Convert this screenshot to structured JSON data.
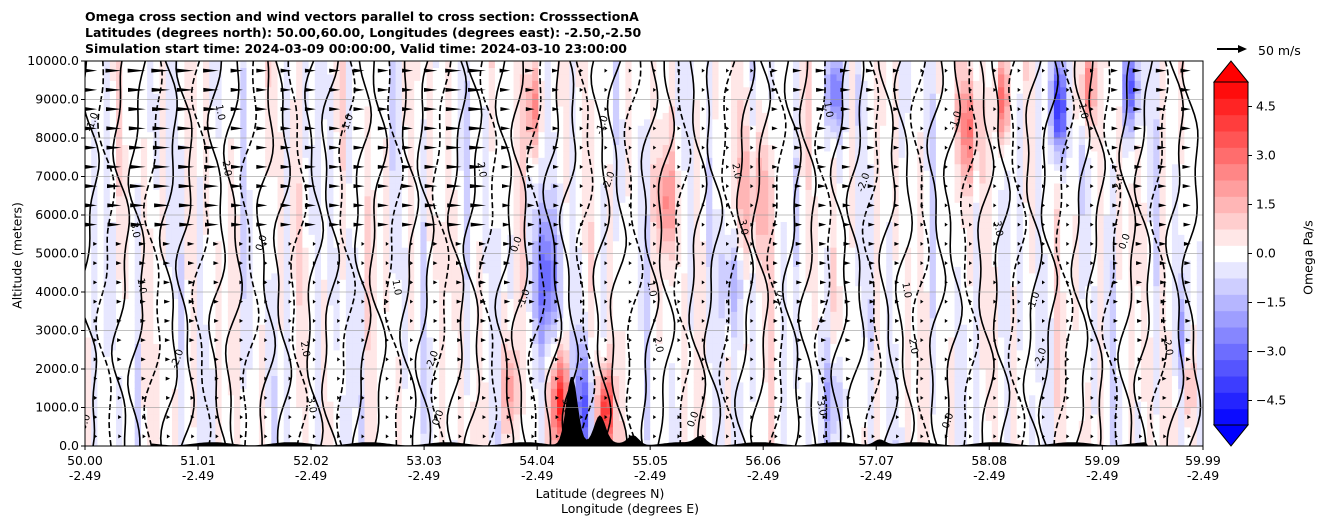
{
  "title": {
    "line1": "Omega cross section and wind vectors parallel to cross section: CrosssectionA",
    "line2": "Latitudes (degrees north): 50.00,60.00, Longitudes (degrees east): -2.50,-2.50",
    "line3": "Simulation start time: 2024-03-09 00:00:00, Valid time: 2024-03-10 23:00:00"
  },
  "chart_data": {
    "type": "heatmap",
    "subtype": "filled-contour cross section with contour lines and wind vectors",
    "ylabel": "Altitude (meters)",
    "xlabel_lines": [
      "Latitude (degrees N)",
      "Longitude (degrees E)"
    ],
    "ylim": [
      0,
      10000
    ],
    "yticks": [
      0,
      1000,
      2000,
      3000,
      4000,
      5000,
      6000,
      7000,
      8000,
      9000,
      10000
    ],
    "ytick_labels": [
      "0.0",
      "1000.0",
      "2000.0",
      "3000.0",
      "4000.0",
      "5000.0",
      "6000.0",
      "7000.0",
      "8000.0",
      "9000.0",
      "10000.0"
    ],
    "xlim": [
      50.0,
      59.99
    ],
    "xtick_lat": [
      "50.00",
      "51.01",
      "52.02",
      "53.03",
      "54.04",
      "55.05",
      "56.06",
      "57.07",
      "58.08",
      "59.09",
      "59.99"
    ],
    "xtick_lon": [
      "-2.49",
      "-2.49",
      "-2.49",
      "-2.49",
      "-2.49",
      "-2.49",
      "-2.49",
      "-2.49",
      "-2.49",
      "-2.49",
      "-2.49"
    ],
    "xtick_values": [
      50.0,
      51.01,
      52.02,
      53.03,
      54.04,
      55.05,
      56.06,
      57.07,
      58.08,
      59.09,
      59.99
    ],
    "grid": "horizontal lines",
    "colorbar": {
      "label": "Omega Pa/s",
      "range": [
        -5.25,
        5.25
      ],
      "step": 0.5,
      "ticks": [
        4.5,
        3.0,
        1.5,
        0.0,
        -1.5,
        -3.0,
        -4.5
      ],
      "tick_labels": [
        "4.5",
        "3.0",
        "1.5",
        "0.0",
        "−1.5",
        "−3.0",
        "−4.5"
      ],
      "extend": "both",
      "colormap": "bwr"
    },
    "vector_key": {
      "value": 50,
      "label": "50 m/s"
    },
    "contour_labels": [
      "0.0",
      "1.0",
      "-1.0",
      "2.0",
      "-2.0",
      "3.0"
    ],
    "updraft_columns": [
      {
        "lat": 54.04,
        "omega_min": -5.0,
        "note": "strong ascent (blue) over terrain"
      },
      {
        "lat": 54.25,
        "omega_max": 5.0,
        "note": "strong descent (red) near surface"
      },
      {
        "lat": 54.65,
        "omega_max": 5.0,
        "note": "strong descent (red) near surface"
      },
      {
        "lat": 58.7,
        "omega_min": -4.5,
        "note": "upper-level ascent"
      }
    ],
    "terrain_peaks": [
      {
        "lat": 54.35,
        "height": 1800
      },
      {
        "lat": 54.6,
        "height": 700
      },
      {
        "lat": 54.9,
        "height": 250
      },
      {
        "lat": 55.5,
        "height": 200
      },
      {
        "lat": 57.1,
        "height": 150
      }
    ]
  },
  "colors": {
    "positive": "#ff0000",
    "negative": "#0000ff",
    "neutral": "#ffffff",
    "terrain": "#000000"
  }
}
